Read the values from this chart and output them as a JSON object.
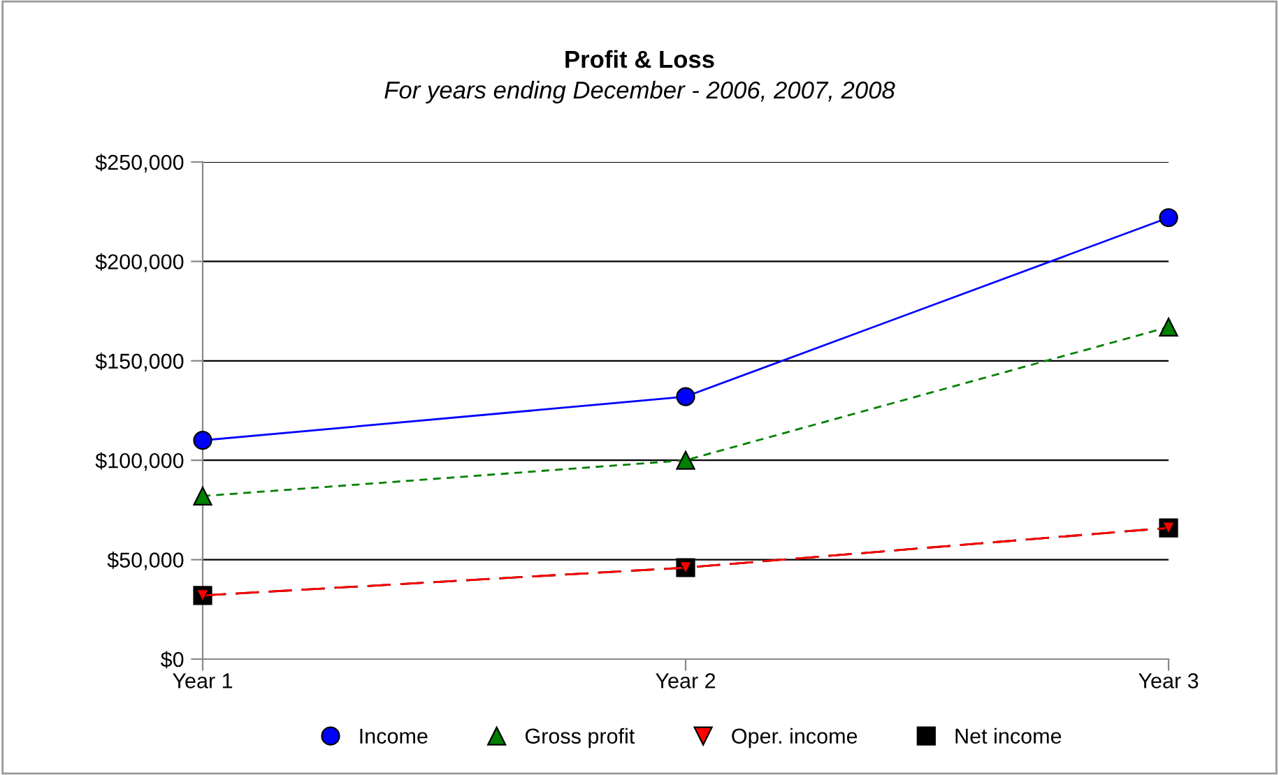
{
  "chart_data": {
    "type": "line",
    "title": "Profit & Loss",
    "subtitle": "For years ending December - 2006, 2007, 2008",
    "categories": [
      "Year 1",
      "Year 2",
      "Year 3"
    ],
    "series": [
      {
        "name": "Income",
        "color": "#0000ff",
        "marker": "circle",
        "line_style": "solid",
        "values": [
          110000,
          132000,
          222000
        ]
      },
      {
        "name": "Gross profit",
        "color": "#008000",
        "marker": "triangle",
        "line_style": "dashed",
        "values": [
          82000,
          100000,
          167000
        ]
      },
      {
        "name": "Oper. income",
        "color": "#ff0000",
        "marker": "triangle_down",
        "line_style": "dashed",
        "values": [
          32000,
          46000,
          66000
        ]
      },
      {
        "name": "Net income",
        "color": "#000000",
        "marker": "square",
        "line_style": "dashed",
        "values": [
          32000,
          46000,
          66000
        ]
      }
    ],
    "ylim": [
      0,
      250000
    ],
    "yticks": [
      {
        "value": 0,
        "label": "$0"
      },
      {
        "value": 50000,
        "label": "$50,000"
      },
      {
        "value": 100000,
        "label": "$100,000"
      },
      {
        "value": 150000,
        "label": "$150,000"
      },
      {
        "value": 200000,
        "label": "$200,000"
      },
      {
        "value": 250000,
        "label": "$250,000"
      }
    ],
    "grid": "y",
    "legend": "bottom"
  }
}
